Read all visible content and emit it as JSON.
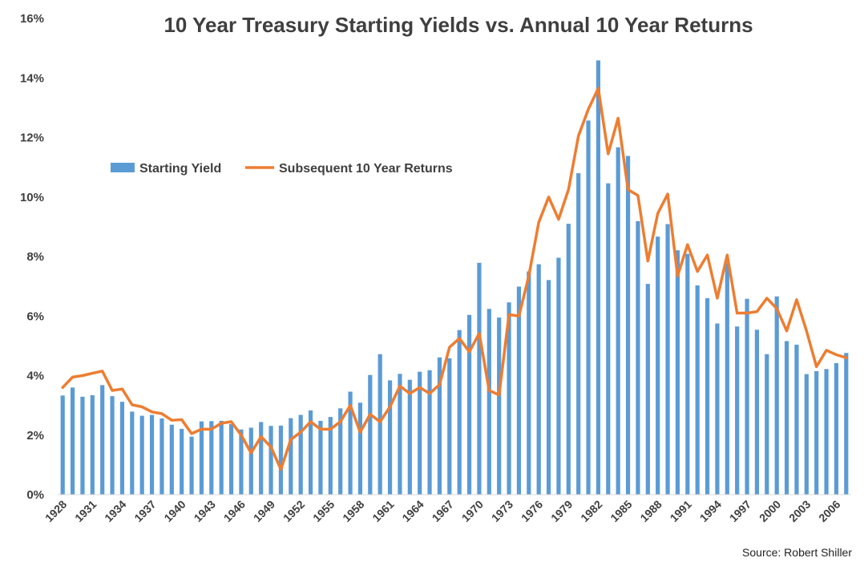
{
  "chart_data": {
    "type": "bar+line",
    "title": "10 Year Treasury Starting Yields vs. Annual 10 Year Returns",
    "source": "Source: Robert Shiller",
    "ylim": [
      0,
      16
    ],
    "y_ticks": [
      "0%",
      "2%",
      "4%",
      "6%",
      "8%",
      "10%",
      "12%",
      "14%",
      "16%"
    ],
    "x_tick_labels": [
      "1928",
      "1931",
      "1934",
      "1937",
      "1940",
      "1943",
      "1946",
      "1949",
      "1952",
      "1955",
      "1958",
      "1961",
      "1964",
      "1967",
      "1970",
      "1973",
      "1976",
      "1979",
      "1982",
      "1985",
      "1988",
      "1991",
      "1994",
      "1997",
      "2000",
      "2003",
      "2006"
    ],
    "years": [
      1928,
      1929,
      1930,
      1931,
      1932,
      1933,
      1934,
      1935,
      1936,
      1937,
      1938,
      1939,
      1940,
      1941,
      1942,
      1943,
      1944,
      1945,
      1946,
      1947,
      1948,
      1949,
      1950,
      1951,
      1952,
      1953,
      1954,
      1955,
      1956,
      1957,
      1958,
      1959,
      1960,
      1961,
      1962,
      1963,
      1964,
      1965,
      1966,
      1967,
      1968,
      1969,
      1970,
      1971,
      1972,
      1973,
      1974,
      1975,
      1976,
      1977,
      1978,
      1979,
      1980,
      1981,
      1982,
      1983,
      1984,
      1985,
      1986,
      1987,
      1988,
      1989,
      1990,
      1991,
      1992,
      1993,
      1994,
      1995,
      1996,
      1997,
      1998,
      1999,
      2000,
      2001,
      2002,
      2003,
      2004,
      2005,
      2006,
      2007
    ],
    "legend_position": "upper-left",
    "grid": false,
    "series": [
      {
        "name": "Starting Yield",
        "type": "bar",
        "color": "#5b9bd5",
        "values": [
          3.33,
          3.6,
          3.29,
          3.34,
          3.68,
          3.31,
          3.12,
          2.79,
          2.65,
          2.68,
          2.56,
          2.35,
          2.21,
          1.95,
          2.46,
          2.47,
          2.48,
          2.37,
          2.19,
          2.25,
          2.44,
          2.31,
          2.32,
          2.57,
          2.68,
          2.83,
          2.48,
          2.61,
          2.9,
          3.46,
          3.09,
          4.02,
          4.72,
          3.84,
          4.06,
          3.86,
          4.13,
          4.18,
          4.61,
          4.58,
          5.53,
          6.04,
          7.79,
          6.24,
          5.95,
          6.46,
          6.99,
          7.5,
          7.74,
          7.21,
          7.96,
          9.1,
          10.8,
          12.57,
          14.59,
          10.46,
          11.67,
          11.38,
          9.19,
          7.08,
          8.67,
          9.09,
          8.21,
          8.09,
          7.03,
          6.6,
          5.75,
          7.78,
          5.65,
          6.58,
          5.54,
          4.72,
          6.66,
          5.16,
          5.04,
          4.05,
          4.15,
          4.22,
          4.42,
          4.76
        ]
      },
      {
        "name": "Subsequent 10 Year Returns",
        "type": "line",
        "color": "#ed7d31",
        "values": [
          3.6,
          3.95,
          4.0,
          4.08,
          4.15,
          3.5,
          3.55,
          3.02,
          2.95,
          2.78,
          2.72,
          2.5,
          2.52,
          2.05,
          2.2,
          2.2,
          2.4,
          2.45,
          2.0,
          1.4,
          1.95,
          1.6,
          0.85,
          1.85,
          2.1,
          2.45,
          2.2,
          2.2,
          2.45,
          3.0,
          2.1,
          2.7,
          2.45,
          2.95,
          3.65,
          3.4,
          3.6,
          3.4,
          3.7,
          4.95,
          5.25,
          4.8,
          5.42,
          3.5,
          3.35,
          6.05,
          6.0,
          7.35,
          9.15,
          10.0,
          9.25,
          10.25,
          12.05,
          12.95,
          13.65,
          11.45,
          12.65,
          10.25,
          10.05,
          7.85,
          9.45,
          10.1,
          7.35,
          8.4,
          7.5,
          8.05,
          6.6,
          8.05,
          6.1,
          6.1,
          6.15,
          6.6,
          6.25,
          5.5,
          6.55,
          5.5,
          4.3,
          4.85,
          4.7,
          4.6
        ]
      }
    ]
  }
}
